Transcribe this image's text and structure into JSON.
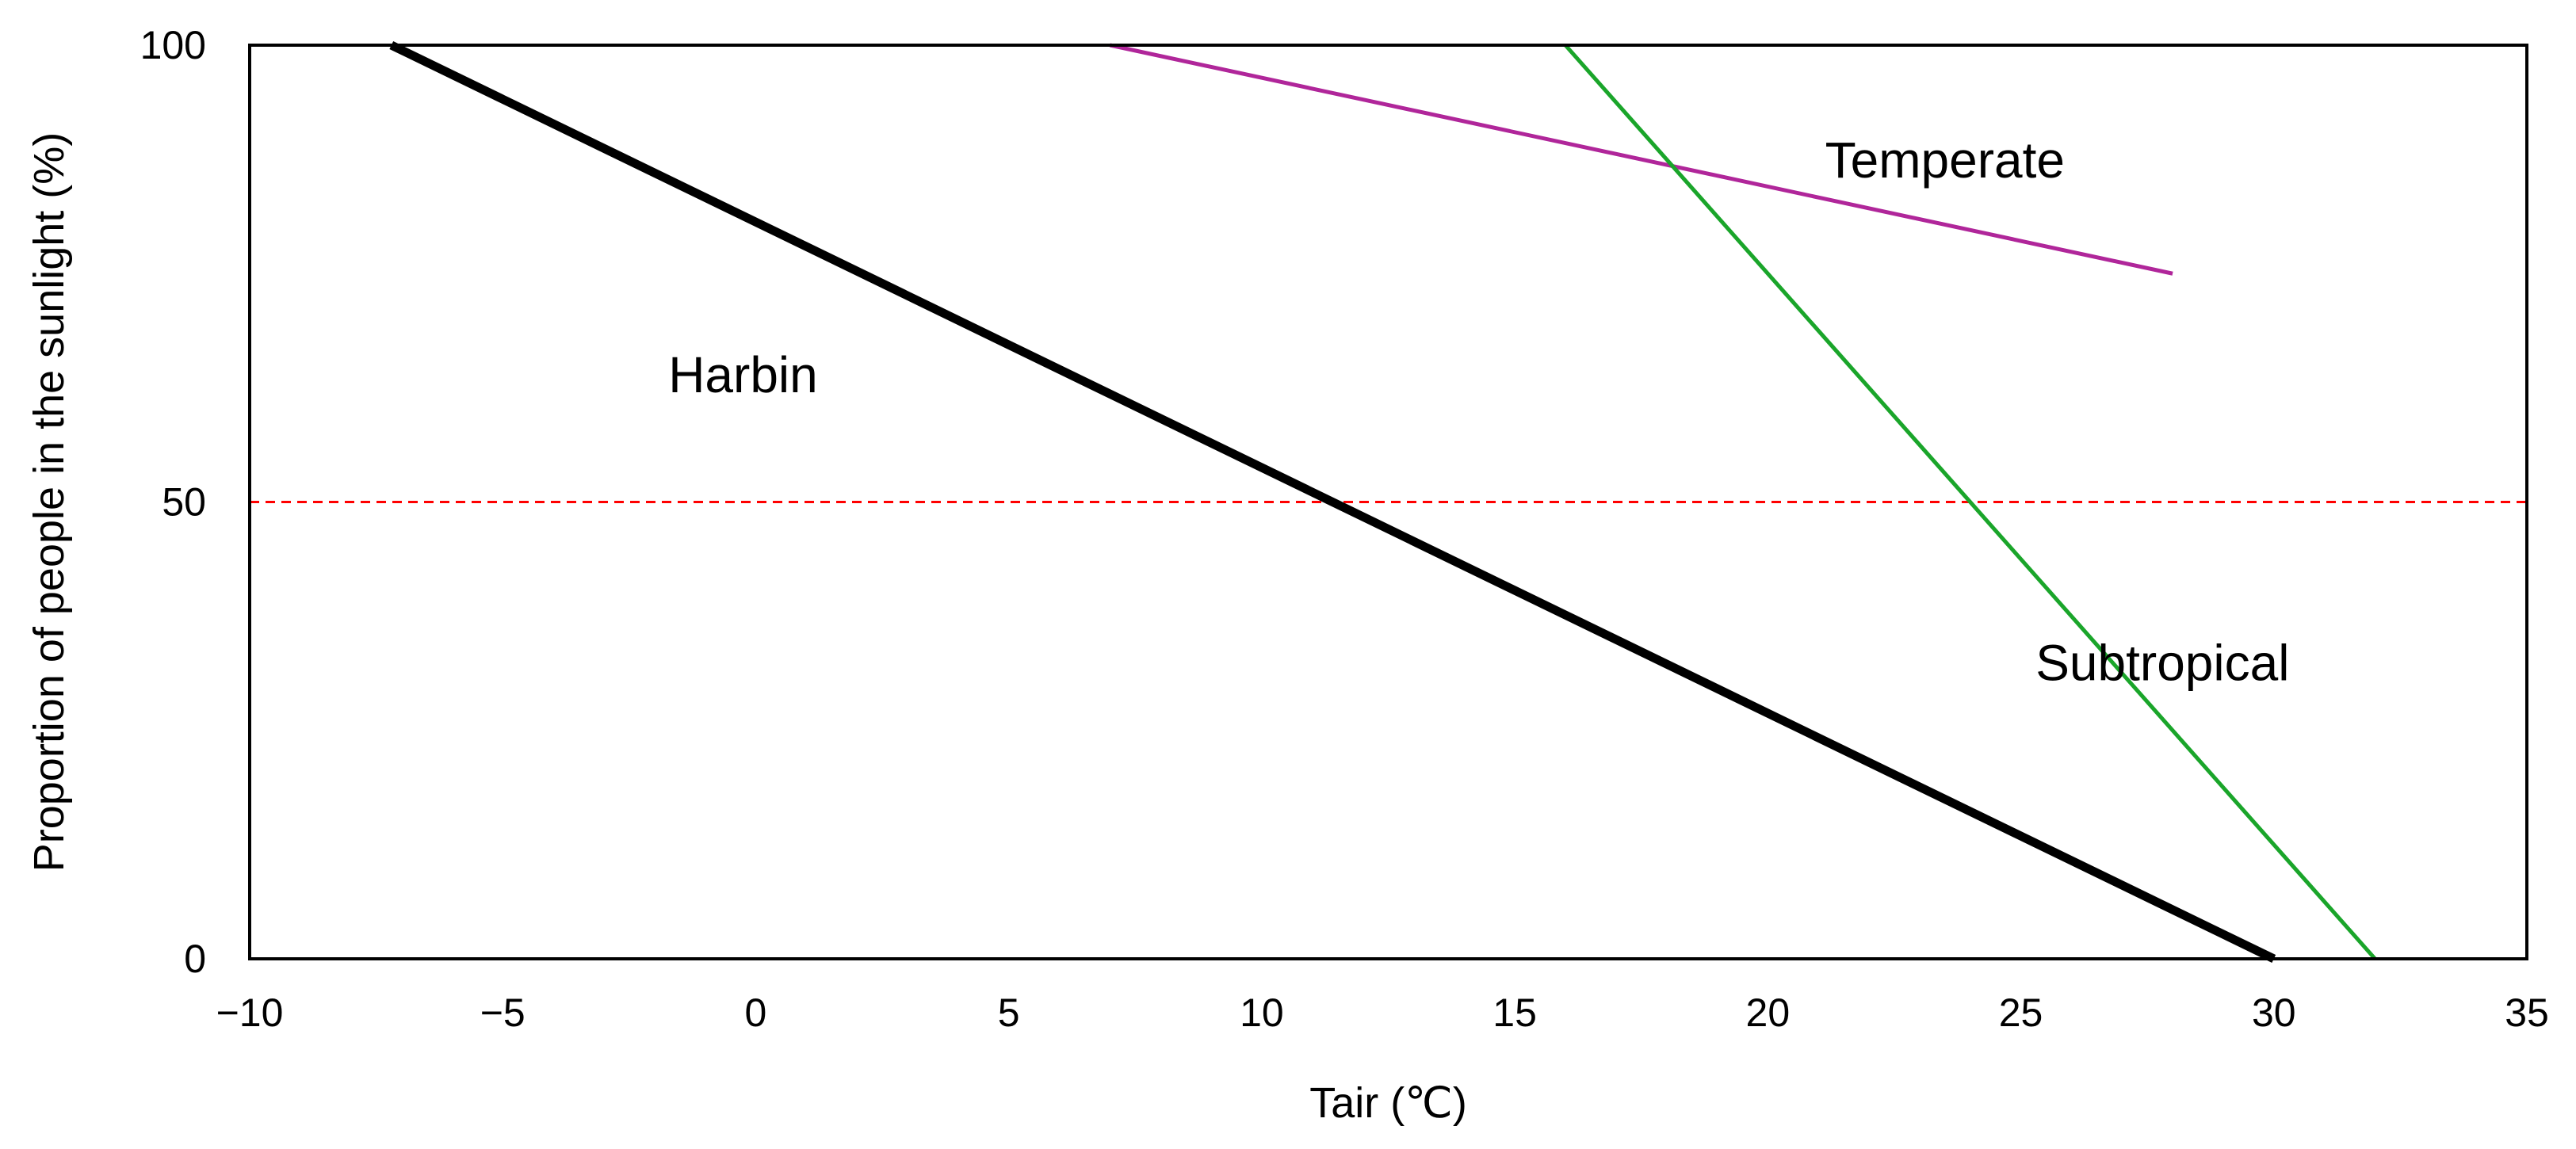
{
  "chart_data": {
    "type": "line",
    "title": "",
    "xlabel": "Tair (℃)",
    "ylabel": "Proportion of people in the sunlight (%)",
    "xlim": [
      -10,
      35
    ],
    "ylim": [
      0,
      100
    ],
    "x_ticks": [
      {
        "value": -10,
        "label": "−10"
      },
      {
        "value": -5,
        "label": "−5"
      },
      {
        "value": 0,
        "label": "0"
      },
      {
        "value": 5,
        "label": "5"
      },
      {
        "value": 10,
        "label": "10"
      },
      {
        "value": 15,
        "label": "15"
      },
      {
        "value": 20,
        "label": "20"
      },
      {
        "value": 25,
        "label": "25"
      },
      {
        "value": 30,
        "label": "30"
      },
      {
        "value": 35,
        "label": "35"
      }
    ],
    "y_ticks": [
      {
        "value": 0,
        "label": "0"
      },
      {
        "value": 50,
        "label": "50"
      },
      {
        "value": 100,
        "label": "100"
      }
    ],
    "grid": false,
    "reference_line": {
      "y": 50,
      "color": "#ff0000",
      "style": "dashed"
    },
    "series": [
      {
        "name": "Harbin",
        "color": "#000000",
        "weight": "heavy",
        "x": [
          -7.2,
          30.0
        ],
        "y": [
          100,
          0
        ],
        "label_at": {
          "x": -0.25,
          "y": 62
        }
      },
      {
        "name": "Temperate",
        "color": "#b0269a",
        "weight": "thin",
        "x": [
          7.0,
          28.0
        ],
        "y": [
          100,
          75
        ],
        "label_at": {
          "x": 23.5,
          "y": 85.5
        }
      },
      {
        "name": "Subtropical",
        "color": "#1aa52a",
        "weight": "thin",
        "x": [
          16.0,
          32.0
        ],
        "y": [
          100,
          0
        ],
        "label_at": {
          "x": 27.8,
          "y": 30.5
        }
      }
    ]
  }
}
